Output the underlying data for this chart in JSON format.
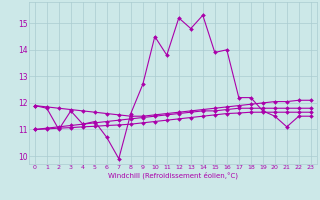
{
  "xlabel": "Windchill (Refroidissement éolien,°C)",
  "background_color": "#cce8e8",
  "line_color": "#aa00aa",
  "grid_color": "#aaccd0",
  "xlim": [
    -0.5,
    23.5
  ],
  "ylim": [
    9.7,
    15.8
  ],
  "yticks": [
    10,
    11,
    12,
    13,
    14,
    15
  ],
  "xticks": [
    0,
    1,
    2,
    3,
    4,
    5,
    6,
    7,
    8,
    9,
    10,
    11,
    12,
    13,
    14,
    15,
    16,
    17,
    18,
    19,
    20,
    21,
    22,
    23
  ],
  "line1": [
    11.9,
    11.8,
    11.0,
    11.7,
    11.2,
    11.3,
    10.7,
    9.9,
    11.6,
    12.7,
    14.5,
    13.8,
    15.2,
    14.8,
    15.3,
    13.9,
    14.0,
    12.2,
    12.2,
    11.7,
    11.5,
    11.1,
    11.5,
    11.5
  ],
  "line2": [
    11.9,
    11.85,
    11.8,
    11.75,
    11.7,
    11.65,
    11.6,
    11.55,
    11.5,
    11.5,
    11.55,
    11.6,
    11.65,
    11.7,
    11.75,
    11.8,
    11.85,
    11.9,
    11.95,
    12.0,
    12.05,
    12.05,
    12.1,
    12.1
  ],
  "line3": [
    11.0,
    11.05,
    11.1,
    11.15,
    11.2,
    11.25,
    11.3,
    11.35,
    11.4,
    11.45,
    11.5,
    11.55,
    11.6,
    11.65,
    11.7,
    11.7,
    11.75,
    11.8,
    11.8,
    11.8,
    11.8,
    11.8,
    11.8,
    11.8
  ],
  "line4": [
    11.0,
    11.02,
    11.05,
    11.07,
    11.1,
    11.12,
    11.15,
    11.17,
    11.2,
    11.25,
    11.3,
    11.35,
    11.4,
    11.45,
    11.5,
    11.55,
    11.6,
    11.62,
    11.65,
    11.65,
    11.65,
    11.65,
    11.65,
    11.65
  ]
}
